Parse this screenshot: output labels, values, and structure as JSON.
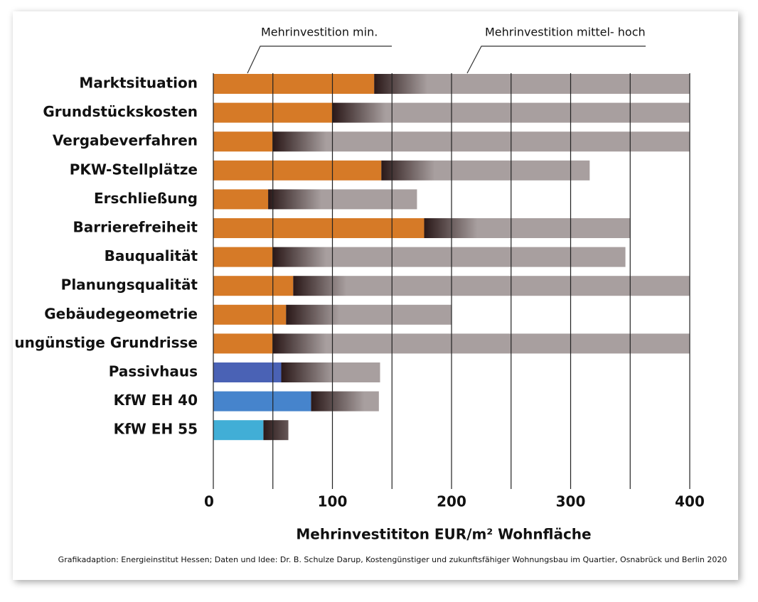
{
  "chart_data": {
    "type": "bar",
    "orientation": "horizontal",
    "x_label": "Mehrinvestititon EUR/m² Wohnfläche",
    "source": "Grafikadaption: Energieinstitut Hessen; Daten und Idee: Dr. B. Schulze Darup, Kostengünstiger und zukunftsfähiger Wohnungsbau im Quartier, Osnabrück und  Berlin 2020",
    "categories": [
      "Marktsituation",
      "Grundstückskosten",
      "Vergabeverfahren",
      "PKW-Stellplätze",
      "Erschließung",
      "Barrierefreiheit",
      "Bauqualität",
      "Planungsqualität",
      "Gebäudegeometrie",
      "ungünstige Grundrisse",
      "Passivhaus",
      "KfW EH 40",
      "KfW EH 55"
    ],
    "series": [
      {
        "name": "Mehrinvestition min.",
        "colors": [
          "#d67a27",
          "#d67a27",
          "#d67a27",
          "#d67a27",
          "#d67a27",
          "#d67a27",
          "#d67a27",
          "#d67a27",
          "#d67a27",
          "#d67a27",
          "#4a62b5",
          "#4684cc",
          "#41aed6"
        ],
        "values": [
          135,
          100,
          50,
          141,
          46,
          177,
          50,
          67,
          61,
          50,
          57,
          82,
          42
        ]
      },
      {
        "name": "Mehrinvestition mittel- hoch",
        "color": "#a89f9f",
        "gradient_start": "#2a1818",
        "values": [
          400,
          400,
          400,
          316,
          171,
          350,
          346,
          400,
          200,
          400,
          140,
          139,
          63
        ]
      }
    ],
    "xlim": [
      0,
      400
    ],
    "xticks": [
      0,
      100,
      200,
      300,
      400
    ],
    "xgrid": [
      0,
      50,
      100,
      150,
      200,
      250,
      300,
      350,
      400
    ]
  }
}
